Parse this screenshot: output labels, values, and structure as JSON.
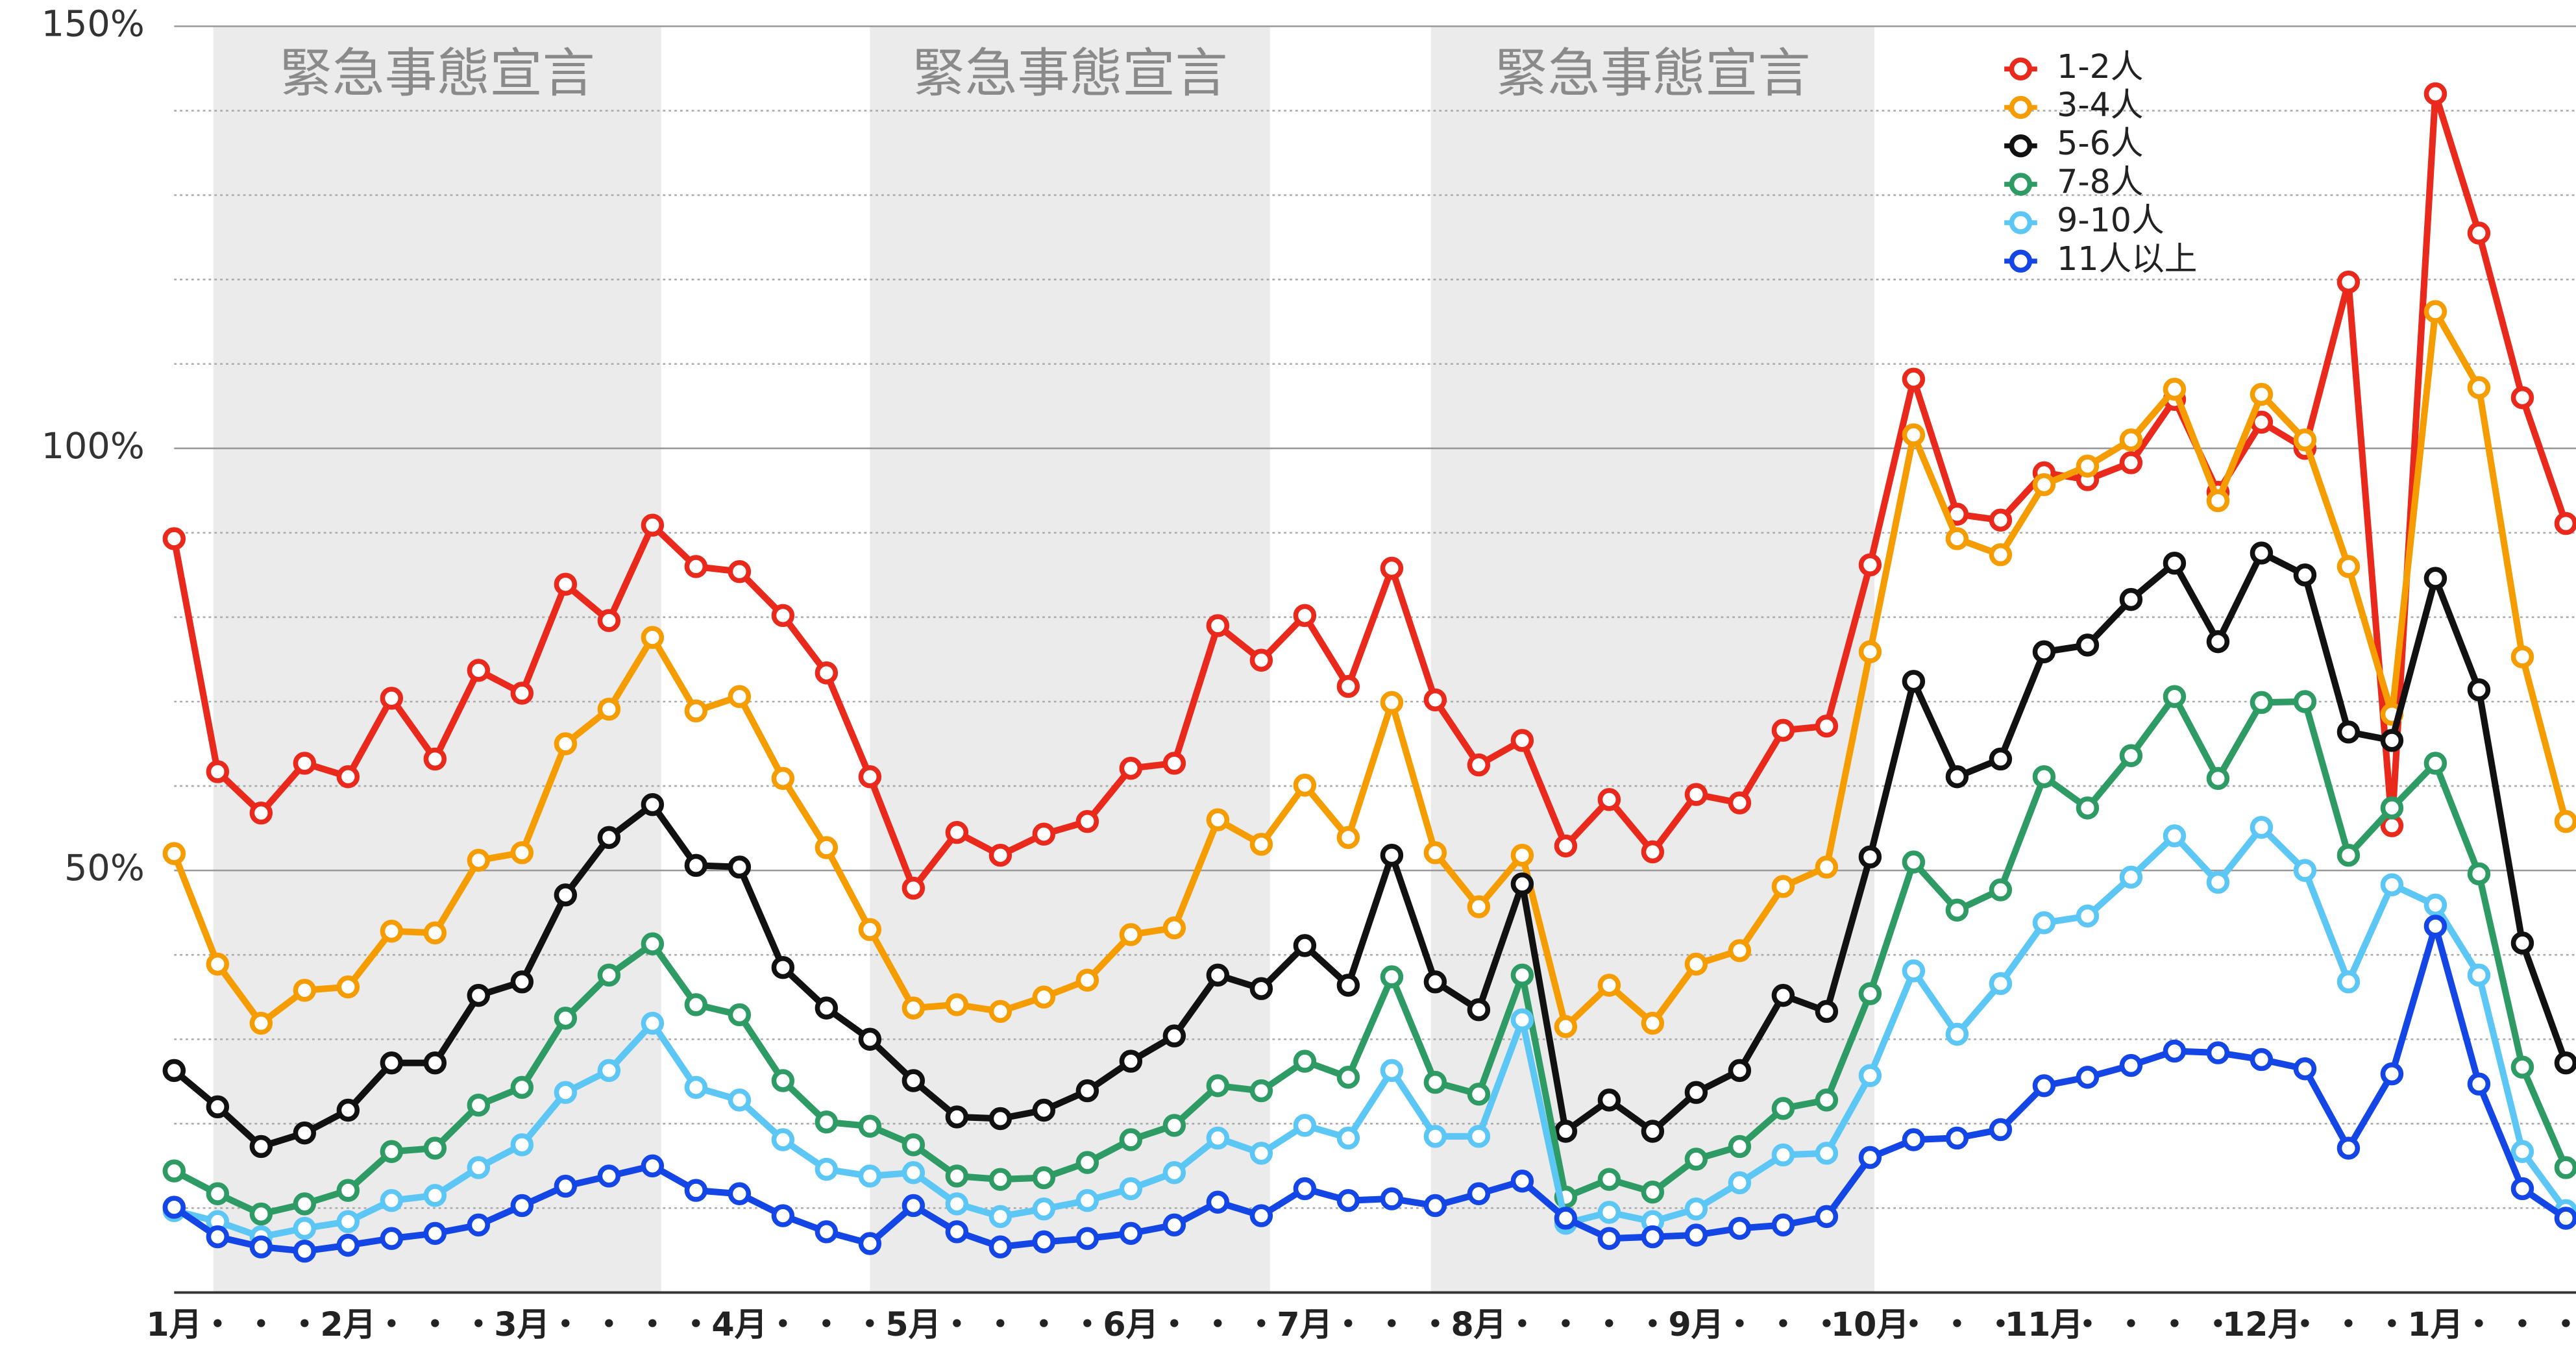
{
  "chart_data": {
    "type": "line",
    "categories": [
      "1月",
      "・",
      "・",
      "・",
      "2月",
      "・",
      "・",
      "・",
      "3月",
      "・",
      "・",
      "・",
      "・",
      "4月",
      "・",
      "・",
      "・",
      "5月",
      "・",
      "・",
      "・",
      "・",
      "6月",
      "・",
      "・",
      "・",
      "7月",
      "・",
      "・",
      "・",
      "8月",
      "・",
      "・",
      "・",
      "・",
      "9月",
      "・",
      "・",
      "・",
      "10月",
      "・",
      "・",
      "・",
      "11月",
      "・",
      "・",
      "・",
      "・",
      "12月",
      "・",
      "・",
      "・",
      "1月",
      "・",
      "・",
      "・"
    ],
    "series": [
      {
        "name": "1-2人",
        "color": "#e8291c",
        "values": [
          89.3,
          61.7,
          56.8,
          62.7,
          61.1,
          70.4,
          63.2,
          73.7,
          71.0,
          83.9,
          79.6,
          90.9,
          86.0,
          85.4,
          80.2,
          73.4,
          61.1,
          47.9,
          54.5,
          51.8,
          54.3,
          55.8,
          62.1,
          62.7,
          79.0,
          74.9,
          80.2,
          71.8,
          85.8,
          70.2,
          62.5,
          65.4,
          52.9,
          58.4,
          52.2,
          59.0,
          58.0,
          66.6,
          67.1,
          86.2,
          108.2,
          92.2,
          91.5,
          97.1,
          96.3,
          98.3,
          105.8,
          94.8,
          103.1,
          100.0,
          119.7,
          55.3,
          142.0,
          125.5,
          106.0,
          91.1
        ]
      },
      {
        "name": "3-4人",
        "color": "#f59d00",
        "values": [
          52.0,
          38.9,
          31.9,
          35.8,
          36.2,
          42.8,
          42.6,
          51.2,
          52.1,
          65.0,
          69.1,
          77.6,
          68.9,
          70.6,
          60.9,
          52.7,
          43.0,
          33.7,
          34.1,
          33.3,
          35.0,
          37.0,
          42.4,
          43.2,
          56.0,
          53.1,
          60.1,
          53.9,
          69.9,
          52.1,
          45.7,
          51.8,
          31.5,
          36.4,
          31.9,
          38.9,
          40.5,
          48.1,
          50.4,
          75.9,
          101.6,
          89.3,
          87.4,
          95.7,
          97.9,
          101.0,
          107.0,
          93.8,
          106.4,
          101.0,
          86.0,
          68.5,
          116.2,
          107.2,
          75.3,
          55.8
        ]
      },
      {
        "name": "5-6人",
        "color": "#111111",
        "values": [
          26.3,
          22.0,
          17.3,
          18.9,
          21.6,
          27.2,
          27.2,
          35.2,
          36.8,
          47.1,
          53.9,
          57.8,
          50.6,
          50.4,
          38.5,
          33.7,
          30.0,
          25.1,
          20.8,
          20.6,
          21.6,
          23.9,
          27.4,
          30.4,
          37.6,
          36.0,
          41.1,
          36.4,
          51.8,
          36.8,
          33.5,
          48.4,
          19.1,
          22.8,
          19.1,
          23.7,
          26.3,
          35.2,
          33.3,
          51.6,
          72.4,
          61.1,
          63.2,
          75.9,
          76.7,
          82.1,
          86.4,
          77.1,
          87.6,
          85.0,
          66.4,
          65.4,
          84.6,
          71.4,
          41.4,
          27.2
        ]
      },
      {
        "name": "7-8人",
        "color": "#2e9b64",
        "values": [
          14.4,
          11.7,
          9.3,
          10.5,
          12.1,
          16.7,
          17.1,
          22.2,
          24.3,
          32.5,
          37.6,
          41.3,
          34.1,
          32.9,
          25.1,
          20.2,
          19.7,
          17.5,
          13.8,
          13.4,
          13.6,
          15.4,
          18.1,
          19.8,
          24.5,
          23.9,
          27.4,
          25.5,
          37.4,
          24.9,
          23.5,
          37.6,
          11.3,
          13.4,
          11.9,
          15.8,
          17.3,
          21.8,
          22.8,
          35.4,
          51.0,
          45.3,
          47.7,
          61.1,
          57.4,
          63.6,
          70.6,
          60.9,
          69.9,
          70.0,
          51.8,
          57.4,
          62.7,
          49.6,
          26.7,
          14.8
        ]
      },
      {
        "name": "9-10人",
        "color": "#5cc6f5",
        "values": [
          9.7,
          8.4,
          6.6,
          7.6,
          8.4,
          10.9,
          11.5,
          14.8,
          17.5,
          23.7,
          26.3,
          31.9,
          24.3,
          22.8,
          18.1,
          14.6,
          13.8,
          14.2,
          10.5,
          9.0,
          9.9,
          10.9,
          12.3,
          14.2,
          18.3,
          16.5,
          19.8,
          18.3,
          26.3,
          18.5,
          18.5,
          32.3,
          8.2,
          9.5,
          8.4,
          9.9,
          13.0,
          16.3,
          16.5,
          25.7,
          38.1,
          30.6,
          36.6,
          43.8,
          44.6,
          49.2,
          54.1,
          48.6,
          55.1,
          50.0,
          36.8,
          48.3,
          45.9,
          37.6,
          16.7,
          9.7
        ]
      },
      {
        "name": "11人以上",
        "color": "#1446e6",
        "values": [
          10.1,
          6.6,
          5.4,
          4.9,
          5.6,
          6.4,
          7.0,
          8.0,
          10.3,
          12.6,
          13.8,
          15.0,
          12.1,
          11.7,
          9.1,
          7.2,
          5.8,
          10.3,
          7.2,
          5.4,
          6.0,
          6.4,
          7.0,
          8.0,
          10.7,
          9.1,
          12.3,
          10.9,
          11.1,
          10.3,
          11.7,
          13.2,
          8.8,
          6.4,
          6.6,
          6.8,
          7.6,
          8.0,
          9.0,
          16.0,
          18.1,
          18.3,
          19.3,
          24.5,
          25.5,
          26.9,
          28.6,
          28.4,
          27.6,
          26.5,
          17.1,
          25.9,
          43.4,
          24.7,
          12.3,
          8.8
        ]
      }
    ],
    "ylim": [
      0,
      150
    ],
    "yticks": [
      {
        "value": 50,
        "label": "50%"
      },
      {
        "value": 100,
        "label": "100%"
      },
      {
        "value": 150,
        "label": "150%"
      }
    ],
    "minor_yticks": [
      10,
      20,
      30,
      40,
      60,
      70,
      80,
      90,
      110,
      120,
      130,
      140
    ],
    "grid": true,
    "legend": "top-right",
    "spans": [
      {
        "label": "緊急事態宣言",
        "start": 0.9,
        "end": 11.2
      },
      {
        "label": "緊急事態宣言",
        "start": 16,
        "end": 25.2
      },
      {
        "label": "緊急事態宣言",
        "start": 28.9,
        "end": 39.1
      }
    ]
  }
}
